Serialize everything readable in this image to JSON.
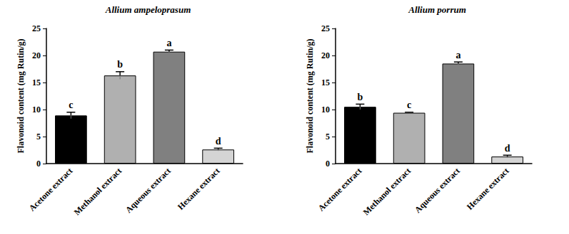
{
  "chart_data": [
    {
      "type": "bar",
      "title": "Allium ampeloprasum",
      "y_label": "Flavonoid content (mg Rutin/g)",
      "categories": [
        "Acetone extract",
        "Methanol extract",
        "Aqueous extract",
        "Hexane extract"
      ],
      "values": [
        8.9,
        16.3,
        20.7,
        2.6
      ],
      "errors": [
        0.6,
        0.7,
        0.3,
        0.25
      ],
      "letters": [
        "c",
        "b",
        "a",
        "d"
      ],
      "colors": [
        "#000000",
        "#b0b0b0",
        "#808080",
        "#d4d4d4"
      ],
      "ylim": [
        0,
        25
      ],
      "yticks": [
        0,
        5,
        10,
        15,
        20,
        25
      ],
      "grid": false
    },
    {
      "type": "bar",
      "title": "Allium porrum",
      "y_label": "Flavonoid content (mg Rutin/g)",
      "categories": [
        "Acetone extract",
        "Methanol extract",
        "Aqueous extract",
        "Hexane extract"
      ],
      "values": [
        10.5,
        9.4,
        18.5,
        1.3
      ],
      "errors": [
        0.5,
        0.1,
        0.3,
        0.25
      ],
      "letters": [
        "b",
        "c",
        "a",
        "d"
      ],
      "colors": [
        "#000000",
        "#b0b0b0",
        "#808080",
        "#d4d4d4"
      ],
      "ylim": [
        0,
        25
      ],
      "yticks": [
        0,
        5,
        10,
        15,
        20,
        25
      ],
      "grid": false
    }
  ]
}
